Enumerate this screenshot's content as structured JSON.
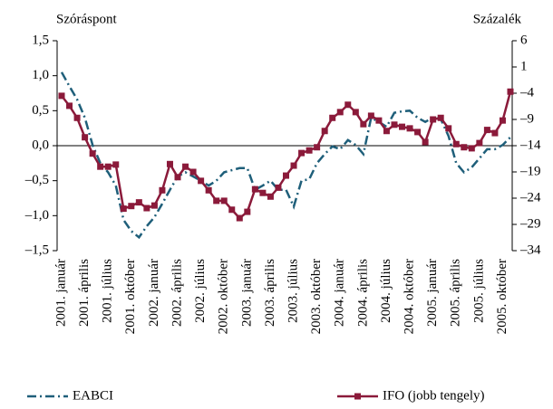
{
  "chart_data": {
    "type": "line",
    "y_label": "Szóráspont",
    "y2_label": "Százalék",
    "categories": [
      "2001. január",
      null,
      null,
      "2001. április",
      null,
      null,
      "2001. július",
      null,
      null,
      "2001. október",
      null,
      null,
      "2002. január",
      null,
      null,
      "2002. április",
      null,
      null,
      "2002. július",
      null,
      null,
      "2002. október",
      null,
      null,
      "2003. január",
      null,
      null,
      "2003. április",
      null,
      null,
      "2003. július",
      null,
      null,
      "2003. október",
      null,
      null,
      "2004. január",
      null,
      null,
      "2004. április",
      null,
      null,
      "2004. július",
      null,
      null,
      "2004. október",
      null,
      null,
      "2005. január",
      null,
      null,
      "2005. április",
      null,
      null,
      "2005. július",
      null,
      null,
      "2005. október",
      null
    ],
    "series": [
      {
        "name": "EABCI",
        "color": "#1f5f7a",
        "axis": "y",
        "style": "dashdot",
        "values": [
          1.05,
          0.85,
          0.66,
          0.4,
          0.01,
          -0.25,
          -0.38,
          -0.57,
          -1.06,
          -1.22,
          -1.31,
          -1.15,
          -1.02,
          -0.83,
          -0.63,
          -0.44,
          -0.38,
          -0.44,
          -0.5,
          -0.57,
          -0.5,
          -0.38,
          -0.35,
          -0.32,
          -0.32,
          -0.63,
          -0.57,
          -0.5,
          -0.63,
          -0.63,
          -0.87,
          -0.5,
          -0.48,
          -0.25,
          -0.12,
          -0.01,
          -0.05,
          0.08,
          0.01,
          -0.12,
          0.4,
          0.34,
          0.27,
          0.47,
          0.49,
          0.5,
          0.4,
          0.34,
          0.4,
          0.38,
          0.14,
          -0.25,
          -0.38,
          -0.31,
          -0.18,
          -0.05,
          -0.05,
          0.01,
          0.12
        ]
      },
      {
        "name": "IFO (jobb tengely)",
        "color": "#8b1a3a",
        "axis": "y2",
        "style": "markers",
        "values": [
          -4.5,
          -6.4,
          -8.7,
          -12.4,
          -15.5,
          -18,
          -18,
          -17.6,
          -26,
          -25.5,
          -24.8,
          -25.9,
          -25.4,
          -22.5,
          -17.5,
          -20,
          -18,
          -19,
          -20.7,
          -22.5,
          -24.5,
          -24.5,
          -26.2,
          -27.8,
          -26.6,
          -22.3,
          -23,
          -23.7,
          -22,
          -19.7,
          -17.8,
          -15.4,
          -14.9,
          -14.3,
          -11.2,
          -8.7,
          -7.6,
          -6.2,
          -7.6,
          -9.9,
          -8.3,
          -9.2,
          -11.2,
          -10,
          -10.4,
          -10.7,
          -11.4,
          -13.3,
          -9,
          -8.7,
          -10.7,
          -13.7,
          -14.3,
          -14.5,
          -13.5,
          -11,
          -11.6,
          -9.2,
          -3.7
        ]
      }
    ],
    "ylim": [
      -1.5,
      1.5
    ],
    "yticks": [
      {
        "value": 1.5,
        "label": "1,5"
      },
      {
        "value": 1.0,
        "label": "1,0"
      },
      {
        "value": 0.5,
        "label": "0,5"
      },
      {
        "value": 0,
        "label": "0,0"
      },
      {
        "value": -0.5,
        "label": "–0,5"
      },
      {
        "value": -1.0,
        "label": "–1,0"
      },
      {
        "value": -1.5,
        "label": "–1,5"
      }
    ],
    "y2lim": [
      -34,
      6
    ],
    "y2ticks": [
      6,
      1,
      {
        "value": -4,
        "label": "–4"
      },
      {
        "value": -9,
        "label": "–9"
      },
      {
        "value": -14,
        "label": "–14"
      },
      {
        "value": -19,
        "label": "–19"
      },
      {
        "value": -24,
        "label": "–24"
      },
      {
        "value": -29,
        "label": "–29"
      },
      {
        "value": -34,
        "label": "–34"
      }
    ],
    "grid": false
  }
}
